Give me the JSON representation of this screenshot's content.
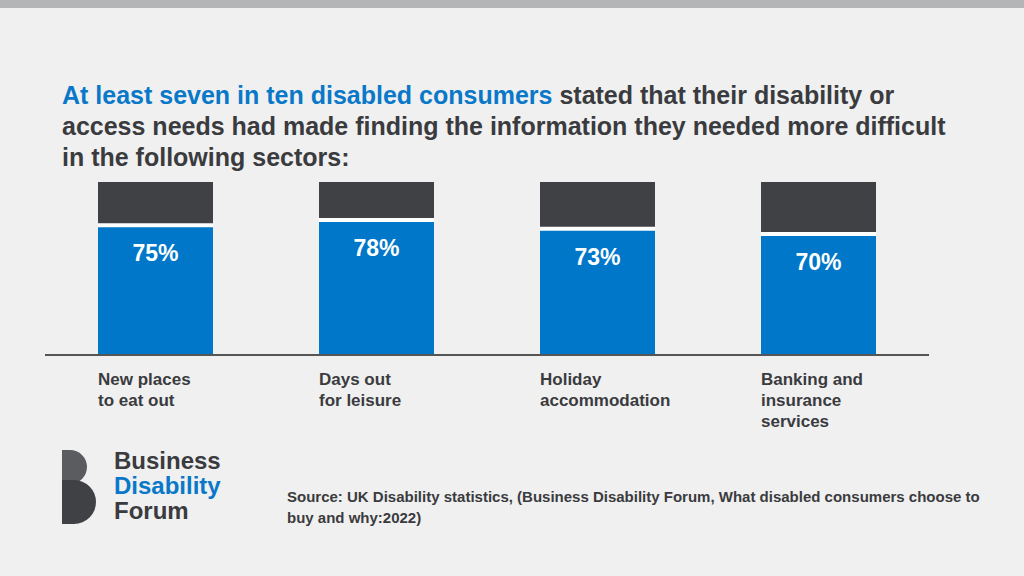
{
  "chart_data": {
    "type": "bar",
    "title": "At least seven in ten disabled consumers stated that their disability or access needs had made finding the information they needed more difficult in the following sectors:",
    "categories": [
      "New places to eat out",
      "Days out for leisure",
      "Holiday accommodation",
      "Banking and insurance services"
    ],
    "values": [
      75,
      78,
      73,
      70
    ],
    "value_labels": [
      "75%",
      "78%",
      "73%",
      "70%"
    ],
    "data_labels": true,
    "color": "#0077c8",
    "ylim": [
      0,
      100
    ],
    "tick_labels": "x",
    "grid": false,
    "annotations": {
      "source": "Source: UK Disability statistics, (Business Disability Forum, What disabled consumers choose to buy and why:2022)",
      "logo": [
        "Business",
        "Disability",
        "Forum"
      ]
    }
  }
}
